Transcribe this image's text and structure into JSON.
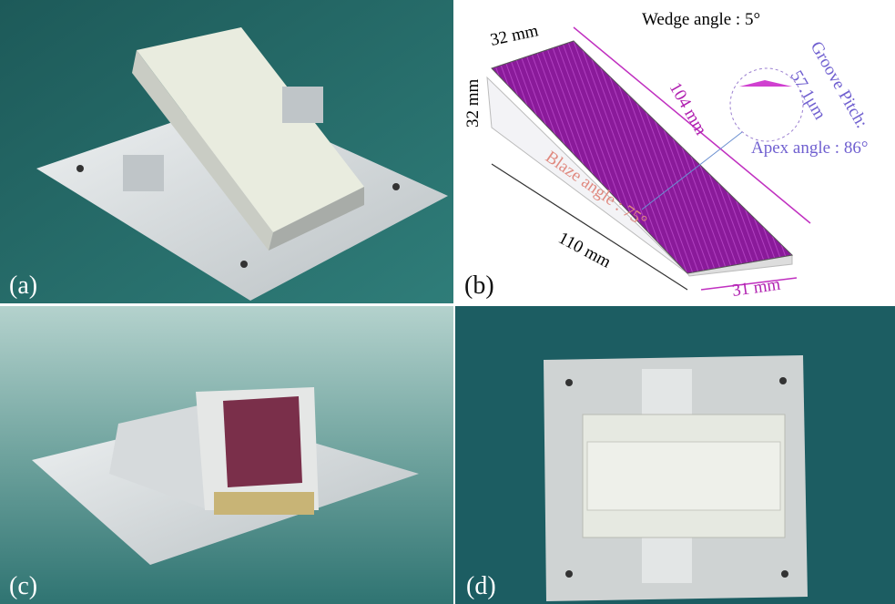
{
  "panels": [
    {
      "label": "(a)"
    },
    {
      "label": "(b)",
      "annotations": {
        "top_width": "32 mm",
        "wedge_angle": "Wedge angle : 5°",
        "height": "32 mm",
        "length": "104 mm",
        "groove_pitch": "Groove Pitch:",
        "pitch_value": "57.1μm",
        "apex_angle": "Apex angle : 86°",
        "blaze_angle": "Blaze angle : 75°",
        "base_length": "110 mm",
        "base_width": "31 mm"
      }
    },
    {
      "label": "(c)"
    },
    {
      "label": "(d)"
    }
  ]
}
